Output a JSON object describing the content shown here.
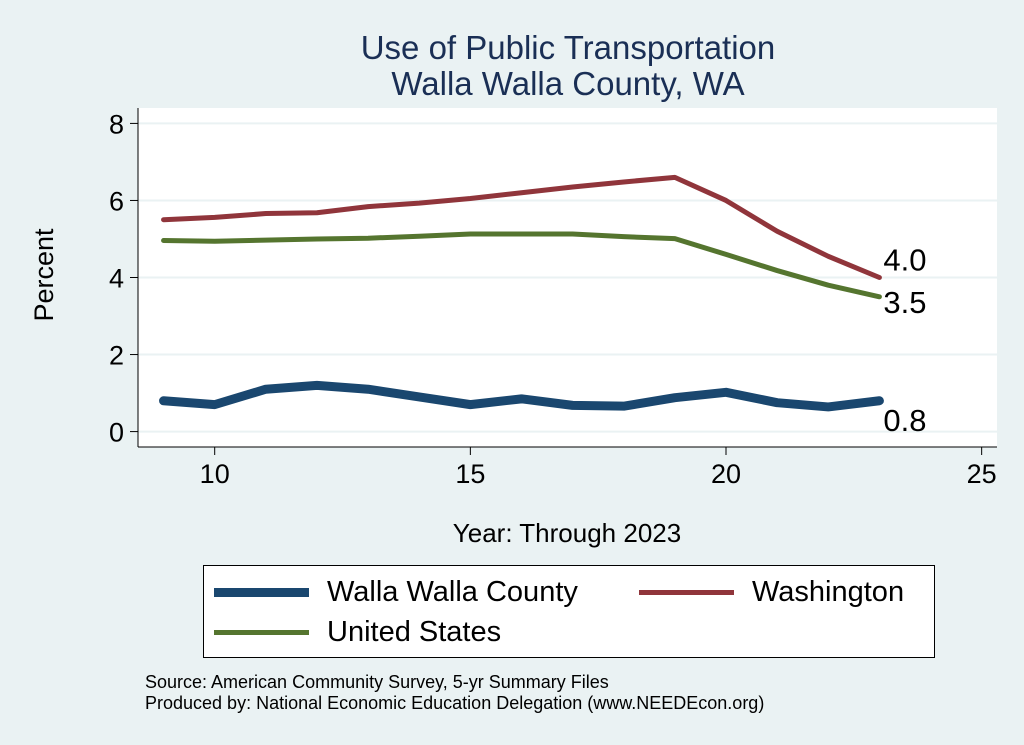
{
  "chart_data": {
    "type": "line",
    "title": [
      "Use of Public Transportation",
      "Walla Walla County, WA"
    ],
    "xlabel": "Year: Through 2023",
    "ylabel": "Percent",
    "xlim": [
      8.5,
      25.3
    ],
    "ylim": [
      -0.4,
      8.4
    ],
    "xticks": [
      10,
      15,
      20,
      25
    ],
    "yticks": [
      0,
      2,
      4,
      6,
      8
    ],
    "grid": "horizontal",
    "legend_position": "bottom",
    "series": [
      {
        "name": "Walla Walla County",
        "color": "#1a476f",
        "x": [
          9,
          10,
          11,
          12,
          13,
          14,
          15,
          16,
          17,
          18,
          19,
          20,
          21,
          22,
          23
        ],
        "values": [
          0.8,
          0.7,
          1.1,
          1.2,
          1.1,
          0.9,
          0.7,
          0.85,
          0.68,
          0.66,
          0.88,
          1.02,
          0.75,
          0.64,
          0.8
        ],
        "end_label": "0.8"
      },
      {
        "name": "Washington",
        "color": "#90353b",
        "x": [
          9,
          10,
          11,
          12,
          13,
          14,
          15,
          16,
          17,
          18,
          19,
          20,
          21,
          22,
          23
        ],
        "values": [
          5.5,
          5.56,
          5.66,
          5.68,
          5.84,
          5.93,
          6.05,
          6.2,
          6.35,
          6.48,
          6.6,
          6.0,
          5.2,
          4.55,
          4.0
        ],
        "end_label": "4.0"
      },
      {
        "name": "United States",
        "color": "#55752f",
        "x": [
          9,
          10,
          11,
          12,
          13,
          14,
          15,
          16,
          17,
          18,
          19,
          20,
          21,
          22,
          23
        ],
        "values": [
          4.96,
          4.94,
          4.97,
          5.0,
          5.02,
          5.07,
          5.13,
          5.13,
          5.13,
          5.06,
          5.01,
          4.6,
          4.18,
          3.8,
          3.5
        ],
        "end_label": "3.5"
      }
    ]
  },
  "legend": {
    "item1": "Walla Walla County",
    "item2": "Washington",
    "item3": "United States"
  },
  "source": {
    "line1": "Source: American Community Survey, 5-yr Summary Files",
    "line2": "Produced by: National Economic Education Delegation (www.NEEDEcon.org)"
  }
}
